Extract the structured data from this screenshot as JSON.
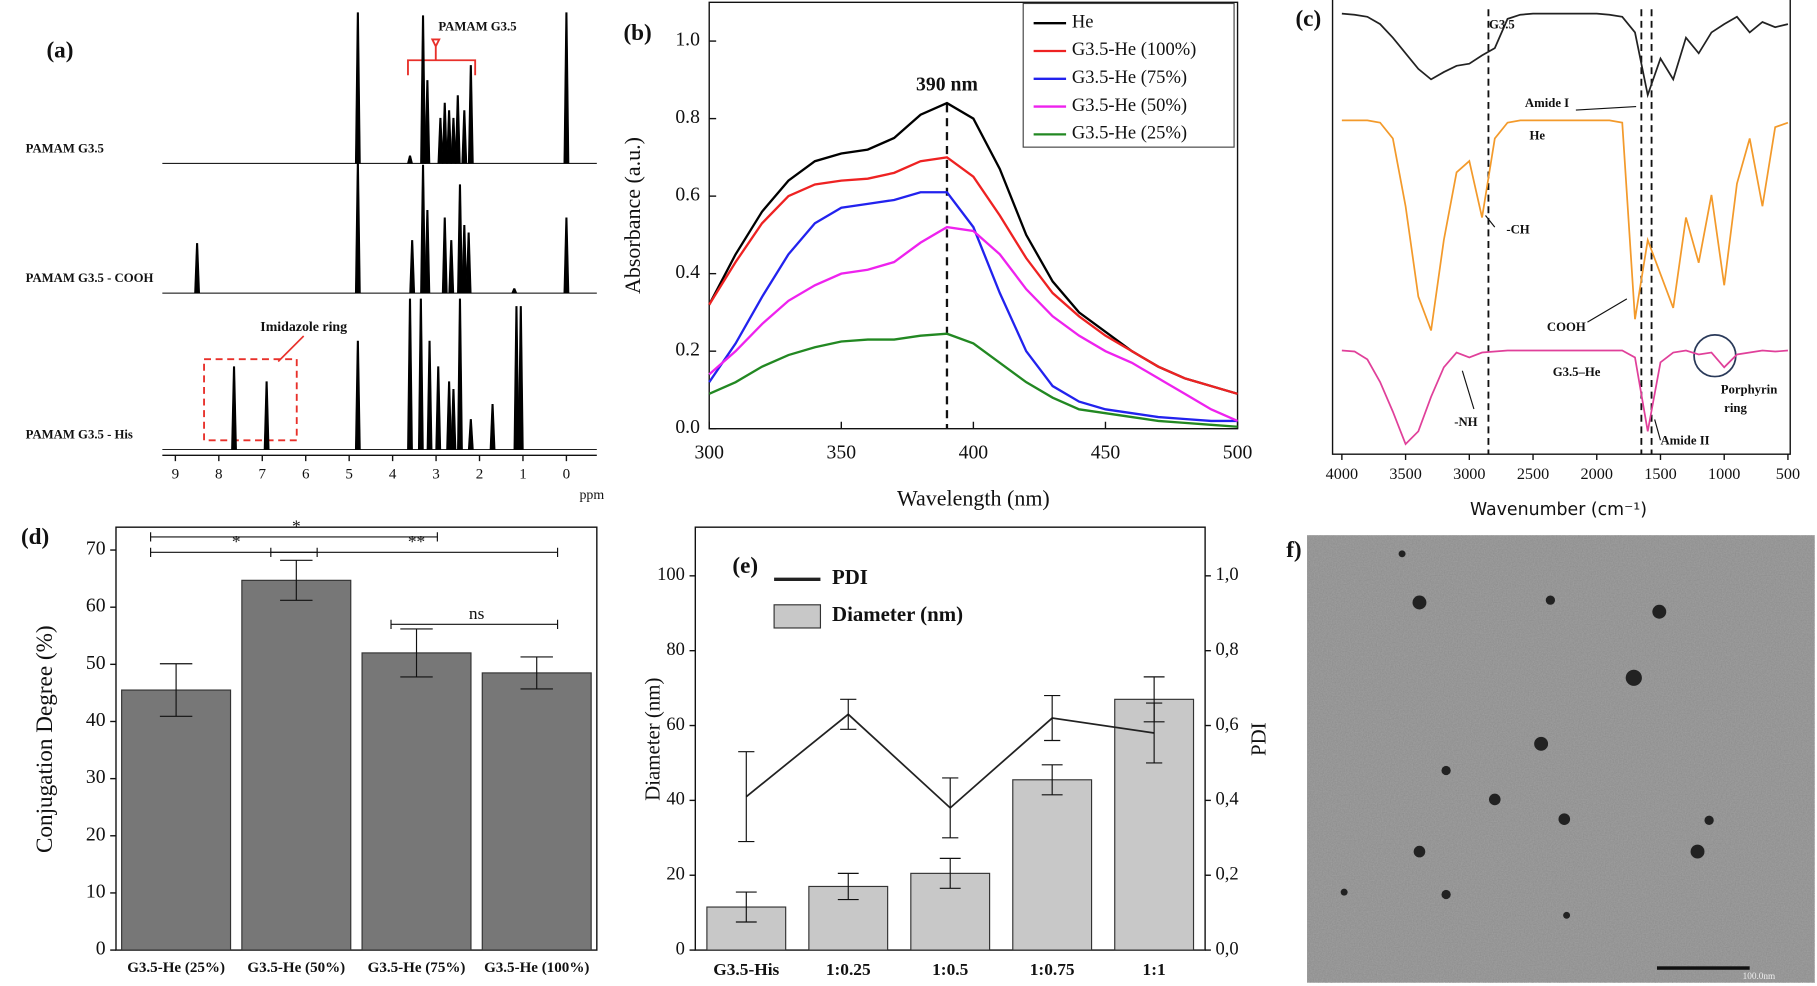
{
  "chart_data": [
    {
      "type": "nmr",
      "label": "(a)",
      "xlabel": "ppm",
      "xlim": [
        9.3,
        -0.7
      ],
      "xticks": [
        9,
        8,
        7,
        6,
        5,
        4,
        3,
        2,
        1,
        0
      ],
      "highlight": "PAMAM G3.5",
      "box_label": "Imidazole ring",
      "annotation_color": "#e8302a",
      "series": [
        {
          "name": "PAMAM G3.5",
          "color": "#000000",
          "x": [
            4.8,
            3.6,
            3.3,
            3.2,
            2.9,
            2.8,
            2.7,
            2.6,
            2.5,
            2.35,
            2.2,
            0
          ],
          "values": [
            1.0,
            0.05,
            0.98,
            0.55,
            0.3,
            0.4,
            0.35,
            0.3,
            0.45,
            0.35,
            0.65,
            1.0
          ]
        },
        {
          "name": "PAMAM G3.5 - COOH",
          "color": "#000000",
          "x": [
            8.5,
            4.8,
            3.55,
            3.3,
            3.2,
            2.8,
            2.65,
            2.45,
            2.35,
            2.25,
            1.2,
            0
          ],
          "values": [
            0.33,
            0.87,
            0.35,
            0.85,
            0.55,
            0.5,
            0.35,
            0.72,
            0.45,
            0.4,
            0.03,
            0.5
          ]
        },
        {
          "name": "PAMAM G3.5 - His",
          "color": "#000000",
          "x": [
            7.65,
            6.9,
            4.8,
            3.6,
            3.35,
            3.15,
            2.95,
            2.7,
            2.6,
            2.45,
            2.2,
            1.7,
            1.15,
            1.05
          ],
          "values": [
            0.55,
            0.45,
            0.72,
            1.0,
            1.0,
            0.72,
            0.55,
            0.45,
            0.4,
            1.0,
            0.2,
            0.3,
            0.95,
            0.95
          ]
        }
      ]
    },
    {
      "type": "line",
      "label": "(b)",
      "xlabel": "Wavelength (nm)",
      "ylabel": "Absorbance (a.u.)",
      "annotation": "390 nm",
      "vline": 390,
      "xlim": [
        300,
        500
      ],
      "ylim": [
        0,
        1.1
      ],
      "xticks": [
        300,
        350,
        400,
        450,
        500
      ],
      "yticks": [
        {
          "value": 0,
          "label": "0.0"
        },
        0.2,
        0.4,
        0.6,
        0.8,
        {
          "value": 1,
          "label": "1.0"
        }
      ],
      "legend": "upper right",
      "x": [
        300,
        310,
        320,
        330,
        340,
        350,
        360,
        370,
        380,
        390,
        400,
        410,
        420,
        430,
        440,
        450,
        460,
        470,
        480,
        490,
        500
      ],
      "series": [
        {
          "name": "He",
          "color": "#000000",
          "values": [
            0.32,
            0.45,
            0.56,
            0.64,
            0.69,
            0.71,
            0.72,
            0.75,
            0.81,
            0.84,
            0.8,
            0.67,
            0.5,
            0.38,
            0.3,
            0.25,
            0.2,
            0.16,
            0.13,
            0.11,
            0.09
          ]
        },
        {
          "name": "G3.5-He (100%)",
          "color": "#ee2222",
          "values": [
            0.32,
            0.43,
            0.53,
            0.6,
            0.63,
            0.64,
            0.645,
            0.66,
            0.69,
            0.7,
            0.65,
            0.55,
            0.44,
            0.35,
            0.29,
            0.24,
            0.2,
            0.16,
            0.13,
            0.11,
            0.09
          ]
        },
        {
          "name": "G3.5-He (75%)",
          "color": "#2222ee",
          "values": [
            0.12,
            0.22,
            0.34,
            0.45,
            0.53,
            0.57,
            0.58,
            0.59,
            0.61,
            0.61,
            0.52,
            0.35,
            0.2,
            0.11,
            0.07,
            0.05,
            0.04,
            0.03,
            0.025,
            0.02,
            0.02
          ]
        },
        {
          "name": "G3.5-He (50%)",
          "color": "#ee22ee",
          "values": [
            0.14,
            0.2,
            0.27,
            0.33,
            0.37,
            0.4,
            0.41,
            0.43,
            0.48,
            0.52,
            0.51,
            0.45,
            0.36,
            0.29,
            0.24,
            0.2,
            0.17,
            0.13,
            0.09,
            0.05,
            0.02
          ]
        },
        {
          "name": "G3.5-He (25%)",
          "color": "#228822",
          "values": [
            0.09,
            0.12,
            0.16,
            0.19,
            0.21,
            0.225,
            0.23,
            0.23,
            0.24,
            0.245,
            0.22,
            0.17,
            0.12,
            0.08,
            0.05,
            0.04,
            0.03,
            0.02,
            0.015,
            0.01,
            0.005
          ]
        }
      ]
    },
    {
      "type": "ir",
      "label": "(c)",
      "xlabel": "Wavenumber (cm⁻¹)",
      "xlim": [
        4073,
        482
      ],
      "xticks": [
        4000,
        3500,
        3000,
        2500,
        2000,
        1500,
        1000,
        500
      ],
      "vlines": [
        2850,
        1650,
        1570
      ],
      "annotations": [
        "Amide I",
        "-CH",
        "COOH",
        "-NH",
        "Amide II",
        "Porphyrin",
        "ring"
      ],
      "x": [
        4000,
        3900,
        3800,
        3700,
        3600,
        3500,
        3400,
        3300,
        3200,
        3100,
        3000,
        2900,
        2800,
        2700,
        2600,
        2500,
        2400,
        2300,
        2200,
        2100,
        2000,
        1900,
        1800,
        1700,
        1600,
        1500,
        1400,
        1300,
        1200,
        1100,
        1000,
        900,
        800,
        700,
        600,
        500
      ],
      "series": [
        {
          "name": "G3.5",
          "color": "#222222",
          "values": [
            0.98,
            0.97,
            0.95,
            0.88,
            0.75,
            0.6,
            0.45,
            0.35,
            0.42,
            0.48,
            0.5,
            0.58,
            0.65,
            0.93,
            0.97,
            0.98,
            0.98,
            0.98,
            0.98,
            0.98,
            0.98,
            0.97,
            0.95,
            0.8,
            0.2,
            0.55,
            0.35,
            0.75,
            0.6,
            0.8,
            0.88,
            0.95,
            0.8,
            0.9,
            0.85,
            0.88
          ]
        },
        {
          "name": "He",
          "color": "#f39a2b",
          "values": [
            0.98,
            0.98,
            0.98,
            0.97,
            0.9,
            0.6,
            0.2,
            0.05,
            0.45,
            0.75,
            0.8,
            0.55,
            0.9,
            0.97,
            0.98,
            0.98,
            0.98,
            0.98,
            0.98,
            0.98,
            0.98,
            0.98,
            0.97,
            0.1,
            0.45,
            0.3,
            0.15,
            0.55,
            0.35,
            0.65,
            0.25,
            0.7,
            0.9,
            0.6,
            0.95,
            0.97
          ]
        },
        {
          "name": "G3.5–He",
          "color": "#e0409a",
          "values": [
            0.97,
            0.96,
            0.88,
            0.65,
            0.35,
            0.02,
            0.15,
            0.5,
            0.8,
            0.95,
            0.9,
            0.95,
            0.96,
            0.97,
            0.97,
            0.97,
            0.97,
            0.97,
            0.97,
            0.97,
            0.97,
            0.97,
            0.97,
            0.9,
            0.15,
            0.85,
            0.95,
            0.97,
            0.93,
            0.95,
            0.8,
            0.93,
            0.95,
            0.97,
            0.96,
            0.97
          ]
        }
      ]
    },
    {
      "type": "bar",
      "label": "(d)",
      "ylabel": "Conjugation Degree (%)",
      "color": "#777777",
      "categories": [
        "G3.5-He (25%)",
        "G3.5-He (50%)",
        "G3.5-He (75%)",
        "G3.5-He (100%)"
      ],
      "values": [
        45.5,
        64.7,
        52,
        48.5
      ],
      "errors": [
        4.6,
        3.5,
        4.2,
        2.8
      ],
      "ylim": [
        0,
        74
      ],
      "yticks": [
        0,
        10,
        20,
        30,
        40,
        50,
        60,
        70
      ],
      "brackets": [
        {
          "label": "*",
          "from": 0,
          "to": 2,
          "y": 72.3
        },
        {
          "label": "*",
          "from": 0,
          "to": 1,
          "y": 69.6
        },
        {
          "label": "**",
          "from": 1,
          "to": 3,
          "y": 69.6
        },
        {
          "label": "ns",
          "from": 2,
          "to": 3,
          "y": 57
        }
      ]
    },
    {
      "type": "combo",
      "label": "(e)",
      "ylabel": "Diameter (nm)",
      "y2label": "PDI",
      "categories": [
        "G3.5-His",
        "1:0.25",
        "1:0.5",
        "1:0.75",
        "1:1"
      ],
      "ylim": [
        0,
        113
      ],
      "yticks": [
        0,
        20,
        40,
        60,
        80,
        100
      ],
      "y2lim": [
        0,
        1.13
      ],
      "y2ticks": [
        {
          "value": 0,
          "label": "0,0"
        },
        {
          "value": 0.2,
          "label": "0,2"
        },
        {
          "value": 0.4,
          "label": "0,4"
        },
        {
          "value": 0.6,
          "label": "0,6"
        },
        {
          "value": 0.8,
          "label": "0,8"
        },
        {
          "value": 1,
          "label": "1,0"
        }
      ],
      "series": [
        {
          "name": "Diameter (nm)",
          "color": "#c8c8c8",
          "values": [
            11.5,
            17,
            20.5,
            45.5,
            67
          ],
          "errors": [
            4,
            3.5,
            4,
            4,
            6
          ]
        },
        {
          "name": "PDI",
          "color": "#222222",
          "axis": "y2",
          "values": [
            0.41,
            0.63,
            0.38,
            0.62,
            0.58
          ],
          "errors": [
            0.12,
            0.04,
            0.08,
            0.06,
            0.08
          ]
        }
      ]
    },
    {
      "type": "image",
      "label": "f)",
      "scale_label": "100.0nm"
    }
  ]
}
